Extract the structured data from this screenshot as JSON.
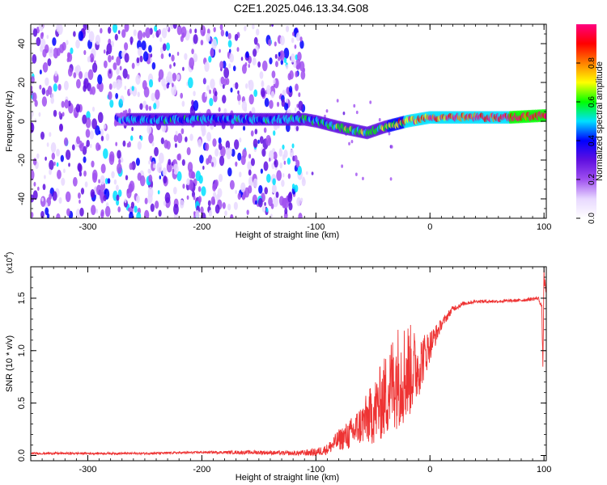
{
  "figure_title": "C2E1.2025.046.13.34.G08",
  "chart_data": [
    {
      "type": "heatmap",
      "title": "C2E1.2025.046.13.34.G08",
      "xlabel": "Height of straight line (km)",
      "ylabel": "Frequency (Hz)",
      "xlim": [
        -350,
        102
      ],
      "ylim": [
        -50,
        50
      ],
      "x_ticks": [
        -300,
        -200,
        -100,
        0,
        100
      ],
      "x_minor_step": 10,
      "y_ticks": [
        -40,
        -20,
        0,
        20,
        40
      ],
      "y_minor_step": 5,
      "colorbar": {
        "label": "Normalized spectral amplitude",
        "range": [
          0,
          1
        ],
        "ticks": [
          0.0,
          0.2,
          0.4,
          0.6,
          0.8
        ],
        "tick_labels": [
          "0.0",
          "0.2",
          "0.4",
          "0.6",
          "0.8"
        ],
        "colormap": [
          "#ffffff",
          "#e8d8ff",
          "#a050f0",
          "#6010e0",
          "#0000ff",
          "#00e0ff",
          "#00ff00",
          "#ffff00",
          "#ff8000",
          "#ff0000",
          "#ff0080"
        ]
      },
      "noise_region": {
        "x_from": -350,
        "x_to": -110,
        "amplitude": 0.45
      },
      "signal_track": [
        {
          "x": -270,
          "freq": 1,
          "amplitude": 0.45
        },
        {
          "x": -220,
          "freq": 1,
          "amplitude": 0.5
        },
        {
          "x": -150,
          "freq": 1,
          "amplitude": 0.48
        },
        {
          "x": -110,
          "freq": 1,
          "amplitude": 0.5
        },
        {
          "x": -100,
          "freq": 0,
          "amplitude": 0.5
        },
        {
          "x": -80,
          "freq": -3,
          "amplitude": 0.6
        },
        {
          "x": -55,
          "freq": -6,
          "amplitude": 0.6
        },
        {
          "x": -40,
          "freq": -3,
          "amplitude": 0.6
        },
        {
          "x": -20,
          "freq": 0,
          "amplitude": 0.85
        },
        {
          "x": 0,
          "freq": 2,
          "amplitude": 0.9
        },
        {
          "x": 30,
          "freq": 2,
          "amplitude": 0.95
        },
        {
          "x": 70,
          "freq": 2,
          "amplitude": 1.0
        },
        {
          "x": 102,
          "freq": 3,
          "amplitude": 1.0
        }
      ]
    },
    {
      "type": "line",
      "xlabel": "Height of straight line (km)",
      "ylabel": "SNR (10 * v/v)",
      "y_multiplier_label": "(x10",
      "y_multiplier_exponent": "4",
      "y_multiplier_close": ")",
      "xlim": [
        -350,
        102
      ],
      "ylim": [
        -0.05,
        1.8
      ],
      "x_ticks": [
        -300,
        -200,
        -100,
        0,
        100
      ],
      "x_minor_step": 10,
      "y_ticks": [
        0.0,
        0.5,
        1.0,
        1.5
      ],
      "y_tick_labels": [
        "0.0",
        "0.5",
        "1.0",
        "1.5"
      ],
      "y_minor_step": 0.1,
      "line_color": "#ee3333",
      "series": [
        {
          "name": "SNR",
          "x": [
            -350,
            -300,
            -250,
            -200,
            -150,
            -120,
            -100,
            -90,
            -80,
            -70,
            -60,
            -50,
            -40,
            -30,
            -20,
            -10,
            0,
            10,
            20,
            30,
            40,
            60,
            80,
            95,
            98,
            99,
            100,
            101,
            102
          ],
          "values": [
            0.02,
            0.02,
            0.02,
            0.03,
            0.03,
            0.02,
            0.03,
            0.06,
            0.15,
            0.2,
            0.3,
            0.4,
            0.55,
            0.75,
            0.8,
            0.85,
            1.05,
            1.25,
            1.4,
            1.45,
            1.47,
            1.47,
            1.48,
            1.5,
            1.42,
            0.85,
            1.75,
            1.6,
            1.55
          ],
          "noise_amplitude": [
            0.01,
            0.01,
            0.01,
            0.01,
            0.02,
            0.02,
            0.04,
            0.05,
            0.1,
            0.15,
            0.2,
            0.3,
            0.4,
            0.5,
            0.5,
            0.3,
            0.15,
            0.05,
            0.03,
            0.02,
            0.015,
            0.015,
            0.015,
            0.02,
            0.02,
            0.05,
            0.1,
            0.05,
            0.03
          ]
        }
      ]
    }
  ]
}
